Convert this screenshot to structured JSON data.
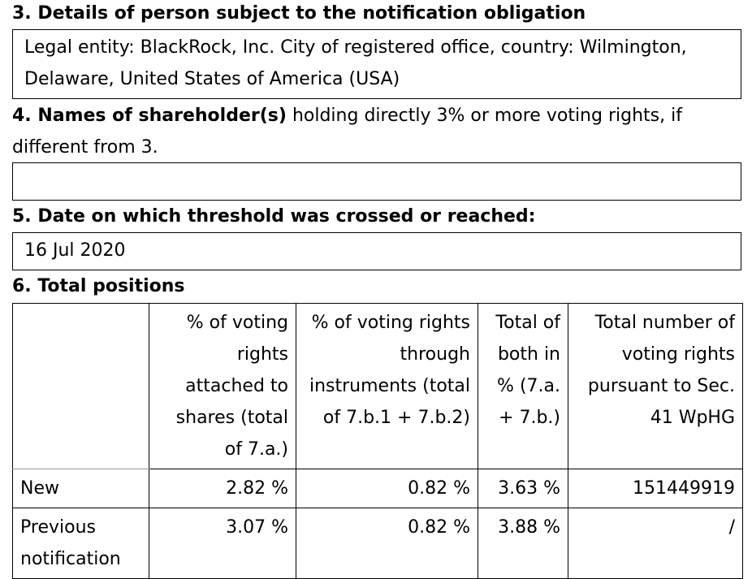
{
  "section3": {
    "heading": "3. Details of person subject to the notification obligation",
    "content": "Legal entity: BlackRock, Inc. City of registered office, country: Wilmington, Delaware, United States of America (USA)"
  },
  "section4": {
    "heading_bold": "4. Names of shareholder(s)",
    "heading_rest": " holding directly 3% or more voting rights, if different from 3.",
    "content": ""
  },
  "section5": {
    "heading": "5. Date on which threshold was crossed or reached:",
    "content": "16 Jul 2020"
  },
  "section6": {
    "heading": "6. Total positions",
    "columns": [
      "",
      "% of voting rights attached to shares (total of 7.a.)",
      "% of voting rights through instruments (total of 7.b.1 + 7.b.2)",
      "Total of both in % (7.a. + 7.b.)",
      "Total number of voting rights pursuant to Sec. 41 WpHG"
    ],
    "rows": [
      {
        "label": "New",
        "shares": "2.82 %",
        "instruments": "0.82 %",
        "total": "3.63 %",
        "voting_rights": "151449919"
      },
      {
        "label": "Previous notification",
        "shares": "3.07 %",
        "instruments": "0.82 %",
        "total": "3.88 %",
        "voting_rights": "/"
      }
    ]
  }
}
